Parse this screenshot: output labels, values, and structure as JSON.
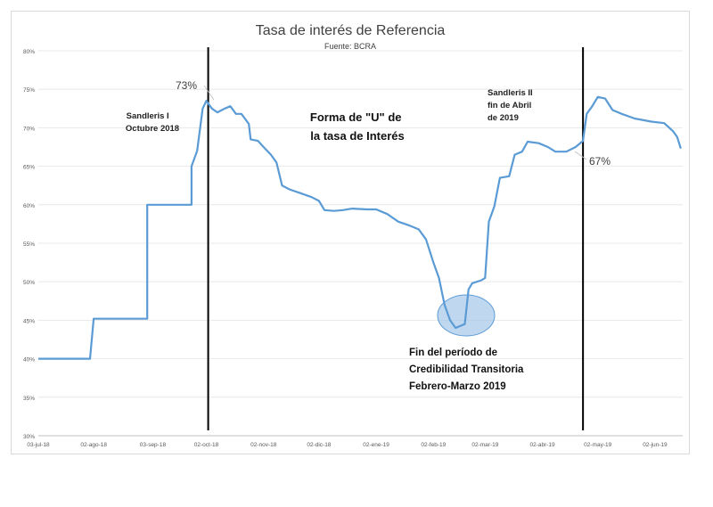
{
  "chart_data": {
    "type": "line",
    "title": "Tasa de interés de Referencia",
    "subtitle": "Fuente: BCRA",
    "xlabel": "",
    "ylabel": "",
    "ylim": [
      30,
      80
    ],
    "y_ticks": [
      "30%",
      "35%",
      "40%",
      "45%",
      "50%",
      "55%",
      "60%",
      "65%",
      "70%",
      "75%",
      "80%"
    ],
    "x_ticks": [
      {
        "date": "2018-07-03",
        "label": "03-jul-18"
      },
      {
        "date": "2018-08-02",
        "label": "02-ago-18"
      },
      {
        "date": "2018-09-03",
        "label": "03-sep-18"
      },
      {
        "date": "2018-10-02",
        "label": "02-oct-18"
      },
      {
        "date": "2018-11-02",
        "label": "02-nov-18"
      },
      {
        "date": "2018-12-02",
        "label": "02-dic-18"
      },
      {
        "date": "2019-01-02",
        "label": "02-ene-19"
      },
      {
        "date": "2019-02-02",
        "label": "02-feb-19"
      },
      {
        "date": "2019-03-02",
        "label": "02-mar-19"
      },
      {
        "date": "2019-04-02",
        "label": "02-abr-19"
      },
      {
        "date": "2019-05-02",
        "label": "02-may-19"
      },
      {
        "date": "2019-06-02",
        "label": "02-jun-19"
      }
    ],
    "grid": true,
    "series": [
      {
        "color": "#5b9bd5",
        "points": [
          [
            "2018-07-03",
            40
          ],
          [
            "2018-07-31",
            40
          ],
          [
            "2018-08-02",
            45.2
          ],
          [
            "2018-08-15",
            45.2
          ],
          [
            "2018-08-31",
            45.2
          ],
          [
            "2018-08-31",
            60
          ],
          [
            "2018-09-24",
            60
          ],
          [
            "2018-09-24",
            65
          ],
          [
            "2018-09-27",
            67
          ],
          [
            "2018-09-30",
            72.5
          ],
          [
            "2018-10-02",
            73.5
          ],
          [
            "2018-10-05",
            72.5
          ],
          [
            "2018-10-08",
            72.0
          ],
          [
            "2018-10-12",
            72.5
          ],
          [
            "2018-10-15",
            72.8
          ],
          [
            "2018-10-18",
            71.8
          ],
          [
            "2018-10-21",
            71.8
          ],
          [
            "2018-10-25",
            70.5
          ],
          [
            "2018-10-26",
            68.5
          ],
          [
            "2018-10-30",
            68.3
          ],
          [
            "2018-11-02",
            67.5
          ],
          [
            "2018-11-06",
            66.5
          ],
          [
            "2018-11-09",
            65.5
          ],
          [
            "2018-11-12",
            62.5
          ],
          [
            "2018-11-16",
            62.0
          ],
          [
            "2018-11-22",
            61.5
          ],
          [
            "2018-11-28",
            61.0
          ],
          [
            "2018-12-02",
            60.5
          ],
          [
            "2018-12-05",
            59.3
          ],
          [
            "2018-12-10",
            59.2
          ],
          [
            "2018-12-15",
            59.3
          ],
          [
            "2018-12-20",
            59.5
          ],
          [
            "2018-12-28",
            59.4
          ],
          [
            "2019-01-02",
            59.4
          ],
          [
            "2019-01-08",
            58.8
          ],
          [
            "2019-01-14",
            57.8
          ],
          [
            "2019-01-20",
            57.3
          ],
          [
            "2019-01-25",
            56.8
          ],
          [
            "2019-01-29",
            55.5
          ],
          [
            "2019-02-02",
            52.5
          ],
          [
            "2019-02-05",
            50.5
          ],
          [
            "2019-02-08",
            47.0
          ],
          [
            "2019-02-11",
            45.0
          ],
          [
            "2019-02-14",
            44.0
          ],
          [
            "2019-02-17",
            44.3
          ],
          [
            "2019-02-19",
            44.5
          ],
          [
            "2019-02-21",
            49.0
          ],
          [
            "2019-02-23",
            49.8
          ],
          [
            "2019-02-28",
            50.2
          ],
          [
            "2019-03-02",
            50.5
          ],
          [
            "2019-03-04",
            57.8
          ],
          [
            "2019-03-07",
            59.8
          ],
          [
            "2019-03-10",
            63.5
          ],
          [
            "2019-03-15",
            63.7
          ],
          [
            "2019-03-18",
            66.5
          ],
          [
            "2019-03-22",
            66.9
          ],
          [
            "2019-03-25",
            68.2
          ],
          [
            "2019-03-31",
            68.0
          ],
          [
            "2019-04-05",
            67.5
          ],
          [
            "2019-04-09",
            66.9
          ],
          [
            "2019-04-15",
            66.9
          ],
          [
            "2019-04-20",
            67.5
          ],
          [
            "2019-04-24",
            68.3
          ],
          [
            "2019-04-26",
            71.8
          ],
          [
            "2019-04-29",
            72.8
          ],
          [
            "2019-05-02",
            74.0
          ],
          [
            "2019-05-06",
            73.8
          ],
          [
            "2019-05-10",
            72.3
          ],
          [
            "2019-05-15",
            71.8
          ],
          [
            "2019-05-22",
            71.2
          ],
          [
            "2019-05-31",
            70.8
          ],
          [
            "2019-06-07",
            70.6
          ],
          [
            "2019-06-12",
            69.5
          ],
          [
            "2019-06-14",
            68.8
          ],
          [
            "2019-06-16",
            67.3
          ]
        ]
      }
    ],
    "vertical_markers": [
      {
        "date": "2018-10-03"
      },
      {
        "date": "2019-04-24"
      }
    ],
    "annotations": {
      "peak_label": "73%",
      "end_label": "67%",
      "sandleris1": [
        "Sandleris I",
        "Octubre 2018"
      ],
      "forma_u": [
        "Forma de \"U\" de",
        "la tasa de Interés"
      ],
      "sandleris2": [
        "Sandleris II",
        "fin de Abril",
        "de 2019"
      ],
      "fin_periodo": [
        "Fin del período de",
        "Credibilidad Transitoria",
        "Febrero-Marzo 2019"
      ]
    }
  }
}
